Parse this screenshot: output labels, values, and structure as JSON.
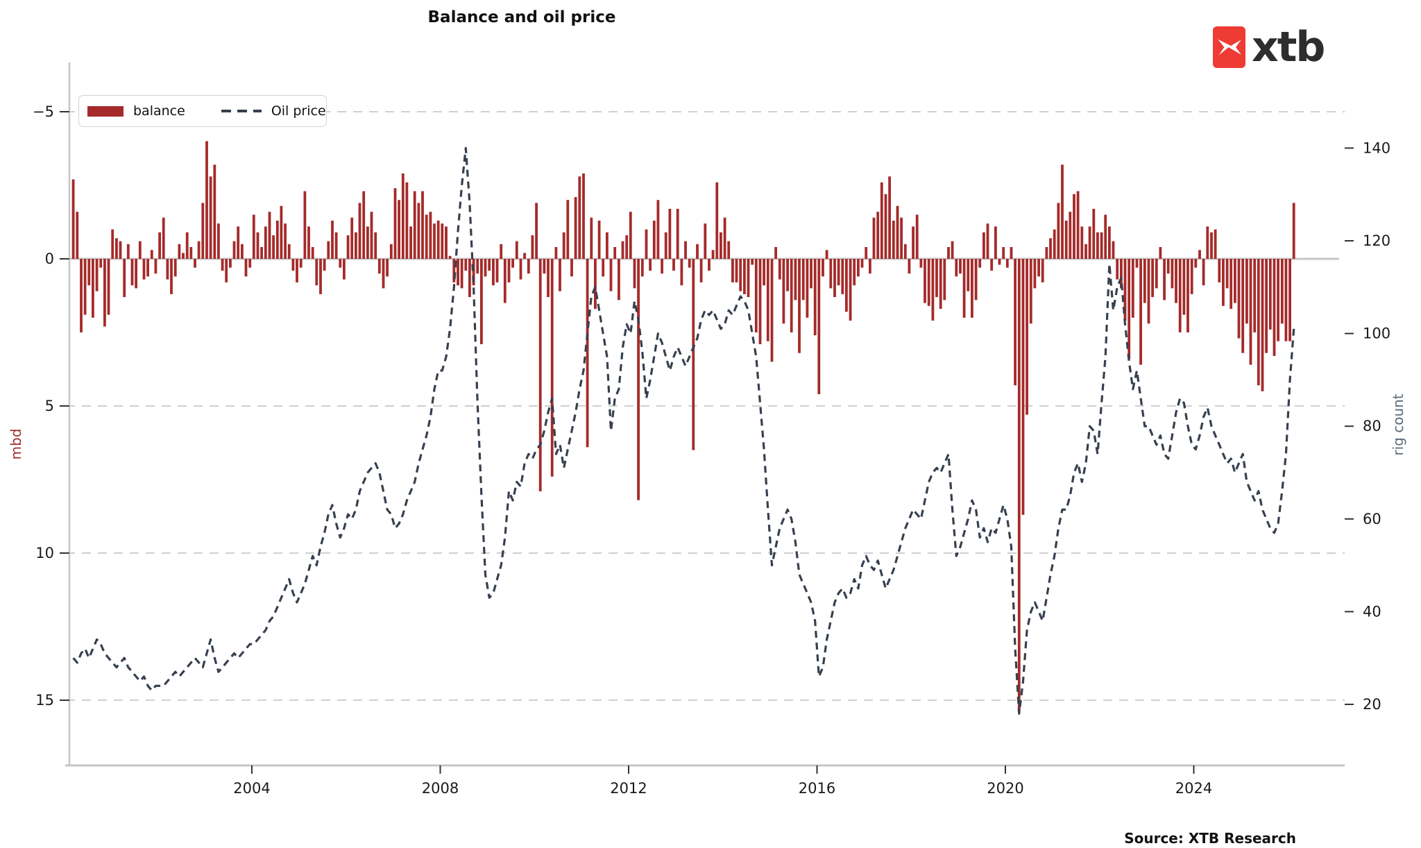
{
  "title": "Balance and oil price",
  "logo": {
    "word": "xtb"
  },
  "legend": {
    "balance_label": "balance",
    "oil_label": "Oil price"
  },
  "source": "Source: XTB Research",
  "colors": {
    "bar": "#A52A2A",
    "line": "#36404F",
    "grid": "#CFCFCF",
    "spine": "#C6C6C6",
    "tick_text": "#1a1a1a",
    "left_axis_label": "#A03030",
    "right_axis_label": "#5C6B7A",
    "logo_red": "#EE3B33",
    "logo_text": "#2E2E2E"
  },
  "chart_data": {
    "type": "bar",
    "note": "monthly data, bars = balance (left inverted axis, mbd), dashed line = Oil price (right axis, rig count scale)",
    "x_start": {
      "year": 2000,
      "month": 3
    },
    "x_tick_years": [
      2004,
      2008,
      2012,
      2016,
      2020,
      2024
    ],
    "left_axis": {
      "label": "mbd",
      "ticks": [
        -5,
        0,
        5,
        10,
        15
      ],
      "inverted": true
    },
    "right_axis": {
      "label": "rig count",
      "ticks": [
        20,
        40,
        60,
        80,
        100,
        120,
        140
      ]
    },
    "grid": "dashed horizontal at left-axis ticks",
    "legend_position": "upper left",
    "series": [
      {
        "name": "balance",
        "type": "bar",
        "axis": "left",
        "unit": "mbd",
        "values": [
          -2.7,
          -1.6,
          2.5,
          1.9,
          0.9,
          2.0,
          1.1,
          0.3,
          2.3,
          1.9,
          -1.0,
          -0.7,
          -0.6,
          1.3,
          -0.5,
          0.9,
          1.0,
          -0.6,
          0.7,
          0.6,
          -0.3,
          0.5,
          -0.9,
          -1.4,
          0.7,
          1.2,
          0.6,
          -0.5,
          -0.2,
          -0.9,
          -0.4,
          0.3,
          -0.6,
          -1.9,
          -4.0,
          -2.8,
          -3.2,
          -1.2,
          0.4,
          0.8,
          0.3,
          -0.6,
          -1.1,
          -0.5,
          0.6,
          0.3,
          -1.5,
          -0.9,
          -0.4,
          -1.1,
          -1.6,
          -0.8,
          -1.3,
          -1.8,
          -1.2,
          -0.5,
          0.4,
          0.8,
          0.3,
          -2.3,
          -1.1,
          -0.4,
          0.9,
          1.2,
          0.4,
          -0.6,
          -1.3,
          -0.9,
          0.3,
          0.7,
          -0.8,
          -1.4,
          -0.9,
          -1.9,
          -2.3,
          -1.1,
          -1.6,
          -0.9,
          0.5,
          1.0,
          0.6,
          -0.5,
          -2.4,
          -2.0,
          -2.9,
          -2.6,
          -1.1,
          -2.3,
          -1.9,
          -2.3,
          -1.5,
          -1.6,
          -1.2,
          -1.3,
          -1.2,
          -1.1,
          -0.1,
          0.8,
          0.9,
          1.0,
          0.4,
          1.3,
          0.9,
          0.5,
          2.9,
          0.6,
          0.4,
          0.9,
          0.8,
          -0.5,
          1.5,
          0.8,
          0.3,
          -0.6,
          0.7,
          -0.2,
          0.5,
          -0.8,
          -1.9,
          7.9,
          0.5,
          1.3,
          7.4,
          -0.4,
          1.1,
          -0.9,
          -2.0,
          0.6,
          -2.1,
          -2.8,
          -2.9,
          6.4,
          -1.4,
          1.7,
          -1.3,
          0.6,
          -0.9,
          1.1,
          -0.4,
          1.4,
          -0.6,
          -0.8,
          -1.6,
          1.0,
          8.2,
          0.6,
          -1.0,
          0.4,
          -1.3,
          -2.0,
          0.5,
          -0.9,
          -1.7,
          0.4,
          -1.7,
          0.9,
          -0.6,
          0.3,
          6.5,
          -0.5,
          0.8,
          -1.2,
          0.4,
          -0.3,
          -2.6,
          -0.9,
          -1.4,
          -0.6,
          0.8,
          0.8,
          1.1,
          1.2,
          1.3,
          0.2,
          2.5,
          2.9,
          0.9,
          2.8,
          3.5,
          -0.4,
          0.7,
          2.2,
          1.1,
          2.5,
          1.4,
          3.2,
          1.4,
          2.0,
          1.0,
          2.6,
          4.6,
          0.6,
          -0.3,
          1.0,
          1.3,
          0.9,
          1.2,
          1.8,
          2.1,
          0.9,
          0.6,
          0.3,
          -0.4,
          0.5,
          -1.4,
          -1.6,
          -2.6,
          -2.2,
          -2.8,
          -1.3,
          -1.8,
          -1.4,
          -0.5,
          0.5,
          -1.1,
          -1.5,
          0.3,
          1.5,
          1.6,
          2.1,
          1.3,
          1.7,
          1.4,
          -0.4,
          -0.6,
          0.6,
          0.5,
          2.0,
          1.1,
          2.0,
          1.4,
          0.3,
          -0.9,
          -1.2,
          0.4,
          -1.1,
          0.2,
          -0.4,
          0.3,
          -0.4,
          4.3,
          15.4,
          8.7,
          5.3,
          2.2,
          1.0,
          0.6,
          0.8,
          -0.4,
          -0.7,
          -1.0,
          -1.9,
          -3.2,
          -1.3,
          -1.6,
          -2.2,
          -2.3,
          -1.1,
          -0.5,
          -1.1,
          -1.7,
          -0.9,
          -0.9,
          -1.5,
          -1.1,
          -0.6,
          0.7,
          1.0,
          2.1,
          3.4,
          2.0,
          0.3,
          3.6,
          1.5,
          2.2,
          1.3,
          1.0,
          -0.4,
          1.4,
          0.5,
          1.0,
          1.5,
          2.5,
          1.9,
          2.5,
          1.2,
          0.3,
          -0.3,
          0.9,
          -1.1,
          -0.9,
          -1.0,
          0.8,
          1.6,
          1.0,
          1.7,
          1.5,
          2.7,
          3.2,
          2.2,
          3.6,
          2.5,
          4.3,
          4.5,
          3.2,
          2.4,
          3.3,
          2.8,
          2.2,
          2.8,
          2.8,
          -1.9
        ]
      },
      {
        "name": "Oil price",
        "type": "line",
        "axis": "right",
        "style": "dashed",
        "values": [
          30,
          29,
          31,
          32,
          30,
          32,
          34,
          33,
          31,
          30,
          29,
          28,
          29,
          30,
          28,
          27,
          26,
          25,
          26,
          24,
          23,
          24,
          24,
          24,
          25,
          26,
          27,
          26,
          27,
          28,
          29,
          30,
          29,
          28,
          31,
          34,
          30,
          27,
          28,
          29,
          30,
          31,
          30,
          31,
          32,
          33,
          33,
          34,
          35,
          36,
          38,
          39,
          41,
          43,
          45,
          47,
          44,
          42,
          44,
          46,
          49,
          52,
          50,
          54,
          57,
          61,
          63,
          59,
          56,
          58,
          61,
          60,
          62,
          66,
          68,
          70,
          71,
          72,
          70,
          66,
          62,
          61,
          58,
          59,
          61,
          64,
          66,
          68,
          72,
          75,
          78,
          82,
          88,
          92,
          92,
          95,
          101,
          110,
          122,
          132,
          140,
          128,
          110,
          85,
          65,
          48,
          43,
          44,
          47,
          50,
          56,
          66,
          64,
          68,
          67,
          72,
          74,
          73,
          75,
          76,
          79,
          83,
          86,
          74,
          76,
          71,
          75,
          79,
          83,
          88,
          92,
          100,
          108,
          110,
          105,
          100,
          95,
          79,
          86,
          88,
          97,
          102,
          100,
          107,
          103,
          96,
          86,
          90,
          95,
          100,
          98,
          95,
          92,
          95,
          97,
          95,
          93,
          95,
          97,
          99,
          103,
          105,
          104,
          105,
          103,
          101,
          102,
          105,
          104,
          106,
          108,
          107,
          105,
          100,
          95,
          85,
          75,
          62,
          50,
          54,
          58,
          60,
          62,
          60,
          55,
          48,
          46,
          44,
          42,
          38,
          26,
          28,
          34,
          38,
          42,
          44,
          45,
          43,
          44,
          47,
          45,
          50,
          52,
          50,
          49,
          51,
          48,
          45,
          47,
          49,
          52,
          55,
          58,
          60,
          62,
          61,
          60,
          64,
          68,
          70,
          71,
          70,
          72,
          74,
          62,
          52,
          54,
          57,
          60,
          64,
          62,
          56,
          58,
          55,
          58,
          57,
          60,
          63,
          60,
          54,
          32,
          18,
          25,
          36,
          40,
          42,
          40,
          38,
          43,
          48,
          52,
          58,
          62,
          62,
          65,
          70,
          72,
          68,
          72,
          80,
          79,
          74,
          85,
          95,
          115,
          105,
          110,
          112,
          102,
          94,
          88,
          92,
          86,
          80,
          80,
          78,
          76,
          78,
          74,
          73,
          78,
          83,
          86,
          85,
          80,
          76,
          75,
          78,
          82,
          84,
          80,
          78,
          76,
          74,
          72,
          73,
          70,
          72,
          74,
          68,
          66,
          64,
          66,
          62,
          60,
          58,
          57,
          59,
          66,
          74,
          90,
          101
        ]
      }
    ]
  }
}
